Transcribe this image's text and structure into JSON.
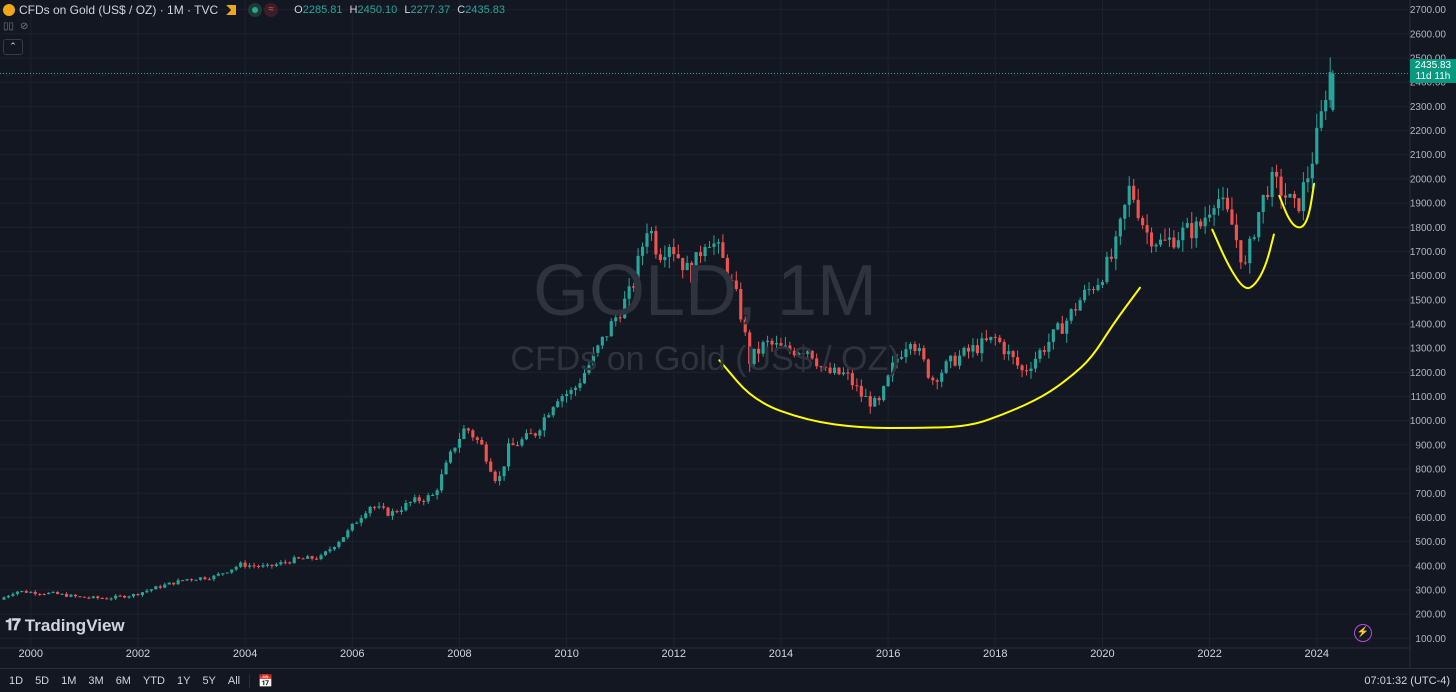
{
  "header": {
    "title": "CFDs on Gold (US$ / OZ) · 1M · TVC",
    "ohlc": [
      {
        "k": "O",
        "v": "2285.81"
      },
      {
        "k": "H",
        "v": "2450.10"
      },
      {
        "k": "L",
        "v": "2277.37"
      },
      {
        "k": "C",
        "v": "2435.83"
      }
    ]
  },
  "watermark": {
    "main": "GOLD, 1M",
    "sub": "CFDs on Gold (US$ / OZ)"
  },
  "logo": "TradingView",
  "last_price": {
    "value": "2435.83",
    "countdown": "11d 11h"
  },
  "ranges": [
    "1D",
    "5D",
    "1M",
    "3M",
    "6M",
    "YTD",
    "1Y",
    "5Y",
    "All"
  ],
  "clock": "07:01:32 (UTC-4)",
  "colors": {
    "up": "#26a69a",
    "down": "#ef5350",
    "annotation": "#ffff00",
    "bg": "#131722"
  },
  "chart_data": {
    "type": "candlestick",
    "title": "CFDs on Gold (US$ / OZ)",
    "interval": "1M",
    "y_ticks": [
      100,
      200,
      300,
      400,
      500,
      600,
      700,
      800,
      900,
      1000,
      1100,
      1200,
      1300,
      1400,
      1500,
      1600,
      1700,
      1800,
      1900,
      2000,
      2100,
      2200,
      2300,
      2400,
      2500,
      2600,
      2700
    ],
    "x_ticks": [
      "2000",
      "2002",
      "2004",
      "2006",
      "2008",
      "2010",
      "2012",
      "2014",
      "2016",
      "2018",
      "2020",
      "2022",
      "2024"
    ],
    "ylim": [
      60,
      2740
    ],
    "x_range": [
      1999.5,
      2024.9
    ],
    "grid": true,
    "close_points": [
      [
        1999.5,
        260
      ],
      [
        1999.8,
        295
      ],
      [
        2000.5,
        285
      ],
      [
        2001.0,
        270
      ],
      [
        2001.5,
        265
      ],
      [
        2002.0,
        280
      ],
      [
        2002.5,
        315
      ],
      [
        2003.0,
        345
      ],
      [
        2003.5,
        355
      ],
      [
        2004.0,
        405
      ],
      [
        2004.5,
        395
      ],
      [
        2005.0,
        425
      ],
      [
        2005.5,
        435
      ],
      [
        2006.0,
        540
      ],
      [
        2006.4,
        650
      ],
      [
        2006.8,
        615
      ],
      [
        2007.2,
        665
      ],
      [
        2007.6,
        690
      ],
      [
        2008.0,
        900
      ],
      [
        2008.2,
        975
      ],
      [
        2008.5,
        895
      ],
      [
        2008.8,
        740
      ],
      [
        2009.0,
        885
      ],
      [
        2009.5,
        950
      ],
      [
        2009.9,
        1100
      ],
      [
        2010.2,
        1120
      ],
      [
        2010.5,
        1230
      ],
      [
        2010.9,
        1390
      ],
      [
        2011.3,
        1540
      ],
      [
        2011.6,
        1820
      ],
      [
        2011.8,
        1690
      ],
      [
        2012.0,
        1740
      ],
      [
        2012.4,
        1600
      ],
      [
        2012.7,
        1770
      ],
      [
        2012.95,
        1690
      ],
      [
        2013.3,
        1480
      ],
      [
        2013.5,
        1250
      ],
      [
        2013.8,
        1320
      ],
      [
        2014.2,
        1290
      ],
      [
        2014.6,
        1300
      ],
      [
        2014.9,
        1200
      ],
      [
        2015.3,
        1190
      ],
      [
        2015.6,
        1100
      ],
      [
        2015.9,
        1060
      ],
      [
        2016.2,
        1240
      ],
      [
        2016.5,
        1350
      ],
      [
        2016.9,
        1170
      ],
      [
        2017.3,
        1250
      ],
      [
        2017.7,
        1300
      ],
      [
        2018.1,
        1340
      ],
      [
        2018.6,
        1200
      ],
      [
        2018.9,
        1280
      ],
      [
        2019.4,
        1410
      ],
      [
        2019.7,
        1510
      ],
      [
        2020.0,
        1580
      ],
      [
        2020.3,
        1690
      ],
      [
        2020.6,
        1970
      ],
      [
        2020.9,
        1780
      ],
      [
        2021.2,
        1730
      ],
      [
        2021.6,
        1780
      ],
      [
        2021.9,
        1800
      ],
      [
        2022.2,
        1940
      ],
      [
        2022.5,
        1810
      ],
      [
        2022.75,
        1630
      ],
      [
        2022.95,
        1830
      ],
      [
        2023.2,
        1990
      ],
      [
        2023.4,
        1960
      ],
      [
        2023.7,
        1870
      ],
      [
        2023.95,
        2040
      ],
      [
        2024.15,
        2230
      ],
      [
        2024.3,
        2435.83
      ]
    ],
    "last_candle": {
      "open": 2285.81,
      "high": 2450.1,
      "low": 2277.37,
      "close": 2435.83
    },
    "annotation_curves": [
      [
        [
          2012.85,
          1250
        ],
        [
          2013.5,
          1080
        ],
        [
          2014.5,
          1000
        ],
        [
          2015.5,
          970
        ],
        [
          2016.5,
          970
        ],
        [
          2017.5,
          975
        ],
        [
          2018.2,
          1030
        ],
        [
          2018.9,
          1100
        ],
        [
          2019.4,
          1180
        ],
        [
          2019.8,
          1260
        ],
        [
          2020.2,
          1400
        ],
        [
          2020.7,
          1550
        ]
      ],
      [
        [
          2022.05,
          1790
        ],
        [
          2022.35,
          1640
        ],
        [
          2022.65,
          1540
        ],
        [
          2022.85,
          1560
        ],
        [
          2023.05,
          1640
        ],
        [
          2023.2,
          1770
        ]
      ],
      [
        [
          2023.3,
          1930
        ],
        [
          2023.5,
          1820
        ],
        [
          2023.7,
          1790
        ],
        [
          2023.85,
          1840
        ],
        [
          2023.95,
          1980
        ]
      ]
    ]
  }
}
